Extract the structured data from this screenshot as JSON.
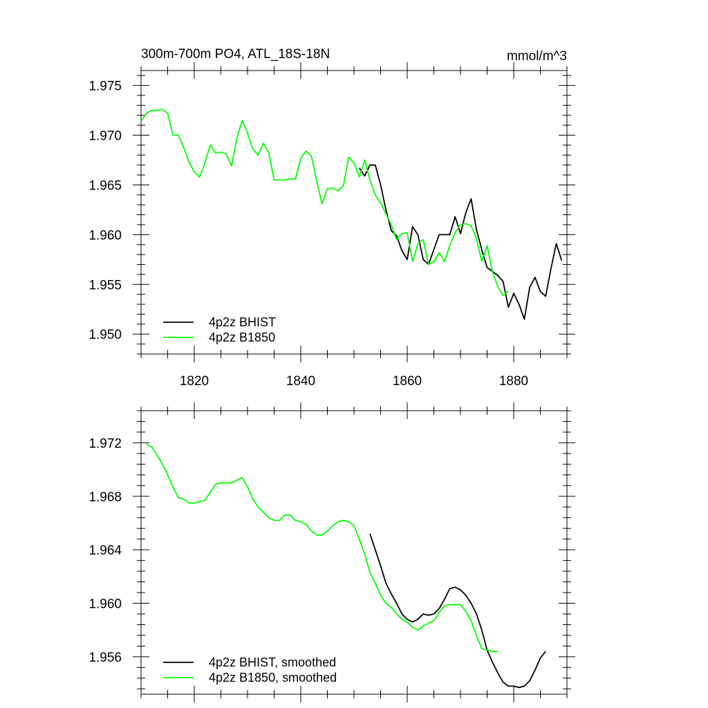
{
  "chart_data": [
    {
      "type": "line",
      "title": "300m-700m PO4, ATL_18S-18N",
      "units": "mmol/m^3",
      "xlim": [
        1810,
        1890
      ],
      "ylim": [
        1.948,
        1.9765
      ],
      "x_ticks": [
        {
          "value": 1820,
          "label": "1820"
        },
        {
          "value": 1840,
          "label": "1840"
        },
        {
          "value": 1860,
          "label": "1860"
        },
        {
          "value": 1880,
          "label": "1880"
        }
      ],
      "y_ticks": [
        {
          "value": 1.95,
          "label": "1.950"
        },
        {
          "value": 1.955,
          "label": "1.955"
        },
        {
          "value": 1.96,
          "label": "1.960"
        },
        {
          "value": 1.965,
          "label": "1.965"
        },
        {
          "value": 1.97,
          "label": "1.970"
        },
        {
          "value": 1.975,
          "label": "1.975"
        }
      ],
      "legend_position": "bottom-left",
      "series": [
        {
          "name": "4p2z BHIST",
          "color": "#000000",
          "x": [
            1851,
            1852,
            1853,
            1854,
            1855,
            1856,
            1857,
            1858,
            1859,
            1860,
            1861,
            1862,
            1863,
            1864,
            1865,
            1866,
            1867,
            1868,
            1869,
            1870,
            1871,
            1872,
            1873,
            1874,
            1875,
            1876,
            1877,
            1878,
            1879,
            1880,
            1881,
            1882,
            1883,
            1884,
            1885,
            1886,
            1887,
            1888,
            1889
          ],
          "y": [
            1.9667,
            1.9659,
            1.967,
            1.967,
            1.965,
            1.9625,
            1.9604,
            1.9599,
            1.9584,
            1.9575,
            1.9608,
            1.96,
            1.9575,
            1.957,
            1.9585,
            1.96,
            1.96,
            1.96,
            1.9618,
            1.9601,
            1.9622,
            1.9636,
            1.9605,
            1.9585,
            1.9567,
            1.9563,
            1.9559,
            1.9553,
            1.9527,
            1.9541,
            1.953,
            1.9515,
            1.9547,
            1.9557,
            1.9543,
            1.9538,
            1.9566,
            1.9591,
            1.9574
          ]
        },
        {
          "name": "4p2z B1850",
          "color": "#00ff00",
          "x": [
            1810,
            1811,
            1812,
            1813,
            1814,
            1815,
            1816,
            1817,
            1818,
            1819,
            1820,
            1821,
            1822,
            1823,
            1824,
            1825,
            1826,
            1827,
            1828,
            1829,
            1830,
            1831,
            1832,
            1833,
            1834,
            1835,
            1836,
            1837,
            1838,
            1839,
            1840,
            1841,
            1842,
            1843,
            1844,
            1845,
            1846,
            1847,
            1848,
            1849,
            1850,
            1851,
            1852,
            1853,
            1854,
            1855,
            1856,
            1857,
            1858,
            1859,
            1860,
            1861,
            1862,
            1863,
            1864,
            1865,
            1866,
            1867,
            1868,
            1869,
            1870,
            1871,
            1872,
            1873,
            1874,
            1875,
            1876,
            1877,
            1878,
            1879,
            1880
          ],
          "y": [
            1.9714,
            1.9722,
            1.9725,
            1.9725,
            1.9726,
            1.9722,
            1.97,
            1.97,
            1.9688,
            1.9673,
            1.9663,
            1.9658,
            1.9672,
            1.969,
            1.9682,
            1.9683,
            1.9681,
            1.9669,
            1.9697,
            1.9715,
            1.9702,
            1.9686,
            1.968,
            1.9692,
            1.9682,
            1.9655,
            1.9655,
            1.9655,
            1.9656,
            1.9656,
            1.9677,
            1.9684,
            1.9679,
            1.9654,
            1.9631,
            1.9646,
            1.9647,
            1.9644,
            1.9649,
            1.9678,
            1.9672,
            1.9658,
            1.9675,
            1.9655,
            1.964,
            1.9632,
            1.9621,
            1.961,
            1.9595,
            1.9601,
            1.9602,
            1.9573,
            1.9591,
            1.9595,
            1.957,
            1.9573,
            1.9582,
            1.9573,
            1.9589,
            1.9602,
            1.961,
            1.9611,
            1.9609,
            1.9596,
            1.9573,
            1.9589,
            1.9563,
            1.9548,
            1.9539,
            1.9543,
            null
          ]
        }
      ]
    },
    {
      "type": "line",
      "xlim": [
        1810,
        1890
      ],
      "ylim": [
        1.9532,
        1.9744
      ],
      "x_ticks": [
        {
          "value": 1820,
          "label": ""
        },
        {
          "value": 1840,
          "label": ""
        },
        {
          "value": 1860,
          "label": ""
        },
        {
          "value": 1880,
          "label": ""
        }
      ],
      "y_ticks": [
        {
          "value": 1.956,
          "label": "1.956"
        },
        {
          "value": 1.96,
          "label": "1.960"
        },
        {
          "value": 1.964,
          "label": "1.964"
        },
        {
          "value": 1.968,
          "label": "1.968"
        },
        {
          "value": 1.972,
          "label": "1.972"
        }
      ],
      "legend_position": "bottom-left",
      "series": [
        {
          "name": "4p2z BHIST, smoothed",
          "color": "#000000",
          "x": [
            1853,
            1854,
            1855,
            1856,
            1857,
            1858,
            1859,
            1860,
            1861,
            1862,
            1863,
            1864,
            1865,
            1866,
            1867,
            1868,
            1869,
            1870,
            1871,
            1872,
            1873,
            1874,
            1875,
            1876,
            1877,
            1878,
            1879,
            1880,
            1881,
            1882,
            1883,
            1884,
            1885,
            1886,
            1887
          ],
          "y": [
            1.9652,
            1.964,
            1.9628,
            1.9615,
            1.9607,
            1.96,
            1.9592,
            1.9588,
            1.9586,
            1.9588,
            1.9592,
            1.9591,
            1.9592,
            1.9596,
            1.9603,
            1.9611,
            1.9612,
            1.961,
            1.9606,
            1.96,
            1.9592,
            1.958,
            1.9565,
            1.9556,
            1.9548,
            1.9541,
            1.9538,
            1.9538,
            1.9537,
            1.9538,
            1.9542,
            1.955,
            1.9559,
            1.9564,
            null
          ]
        },
        {
          "name": "4p2z B1850, smoothed",
          "color": "#00ff00",
          "x": [
            1810,
            1811,
            1812,
            1813,
            1814,
            1815,
            1816,
            1817,
            1818,
            1819,
            1820,
            1821,
            1822,
            1823,
            1824,
            1825,
            1826,
            1827,
            1828,
            1829,
            1830,
            1831,
            1832,
            1833,
            1834,
            1835,
            1836,
            1837,
            1838,
            1839,
            1840,
            1841,
            1842,
            1843,
            1844,
            1845,
            1846,
            1847,
            1848,
            1849,
            1850,
            1851,
            1852,
            1853,
            1854,
            1855,
            1856,
            1857,
            1858,
            1859,
            1860,
            1861,
            1862,
            1863,
            1864,
            1865,
            1866,
            1867,
            1868,
            1869,
            1870,
            1871,
            1872,
            1873,
            1874,
            1875,
            1876,
            1877
          ],
          "y": [
            null,
            1.9719,
            1.9717,
            1.9711,
            1.9704,
            1.9696,
            1.9687,
            1.9679,
            1.9678,
            1.9675,
            1.9675,
            1.9676,
            1.9677,
            1.9683,
            1.9689,
            1.969,
            1.969,
            1.969,
            1.9692,
            1.9694,
            1.9687,
            1.9678,
            1.9672,
            1.9668,
            1.9664,
            1.9662,
            1.9662,
            1.9666,
            1.9666,
            1.9662,
            1.9661,
            1.9659,
            1.9654,
            1.9651,
            1.9651,
            1.9654,
            1.9658,
            1.9661,
            1.9662,
            1.9661,
            1.9658,
            1.9648,
            1.9637,
            1.9623,
            1.9615,
            1.9606,
            1.96,
            1.9597,
            1.9592,
            1.9588,
            1.9586,
            1.9582,
            1.958,
            1.9583,
            1.9585,
            1.9587,
            1.9593,
            1.9598,
            1.9599,
            1.9599,
            1.9599,
            1.9594,
            1.9587,
            1.9576,
            1.9566,
            1.9565,
            1.9564,
            1.9564
          ]
        }
      ]
    }
  ]
}
